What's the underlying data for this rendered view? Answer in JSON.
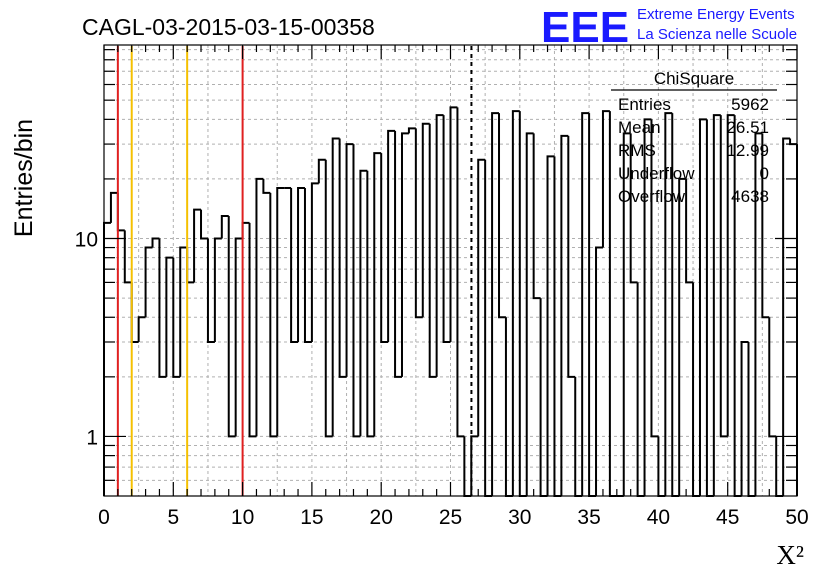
{
  "chart_data": {
    "type": "histogram",
    "title": "CAGL-03-2015-03-15-00358",
    "xlabel": "X²",
    "ylabel": "Entries/bin",
    "x_scale": "linear",
    "y_scale": "log",
    "xlim": [
      0,
      50
    ],
    "ylim": [
      0.5,
      95
    ],
    "x_ticks": [
      0,
      5,
      10,
      15,
      20,
      25,
      30,
      35,
      40,
      45,
      50
    ],
    "x_tick_labels": [
      "0",
      "5",
      "10",
      "15",
      "20",
      "25",
      "30",
      "35",
      "40",
      "45",
      "50"
    ],
    "y_ticks": [
      1,
      10
    ],
    "y_tick_labels": [
      "1",
      "10"
    ],
    "grid": true,
    "bin_width": 0.5,
    "bin_start": 0,
    "counts": [
      12,
      17,
      11,
      6,
      3,
      4,
      9,
      10,
      2,
      8,
      2,
      9,
      6,
      14,
      10,
      3,
      10,
      13,
      1,
      10,
      12,
      1,
      20,
      17,
      1,
      18,
      18,
      3,
      18,
      3,
      19,
      25,
      1,
      32,
      2,
      30,
      1,
      22,
      1,
      27,
      3,
      35,
      2,
      34,
      36,
      4,
      38,
      2,
      42,
      3,
      46,
      1,
      0,
      1,
      25,
      0,
      43,
      4,
      0,
      44,
      0,
      34,
      5,
      0,
      26,
      0,
      33,
      2,
      0,
      43,
      0,
      9,
      44,
      0,
      0,
      34,
      6,
      0,
      40,
      1,
      0,
      43,
      0,
      20,
      6,
      0,
      40,
      0,
      42,
      1,
      42,
      0,
      3,
      0,
      34,
      4,
      1,
      0,
      32,
      30
    ],
    "vlines": [
      {
        "x": 1,
        "color": "#e02020",
        "style": "solid"
      },
      {
        "x": 2,
        "color": "#f5c000",
        "style": "solid"
      },
      {
        "x": 6,
        "color": "#f5c000",
        "style": "solid"
      },
      {
        "x": 10,
        "color": "#e02020",
        "style": "solid"
      },
      {
        "x": 26.51,
        "color": "#000000",
        "style": "dashed"
      }
    ],
    "stats_box": {
      "title": "ChiSquare",
      "rows": [
        {
          "label": "Entries",
          "value": "5962"
        },
        {
          "label": "Mean",
          "value": "26.51"
        },
        {
          "label": "RMS",
          "value": "12.99"
        },
        {
          "label": "Underflow",
          "value": "0"
        },
        {
          "label": "Overflow",
          "value": "4638"
        }
      ]
    }
  },
  "logo": {
    "text": "EEE",
    "line1": "Extreme Energy Events",
    "line2": "La Scienza nelle Scuole",
    "color": "#1a1aff"
  }
}
